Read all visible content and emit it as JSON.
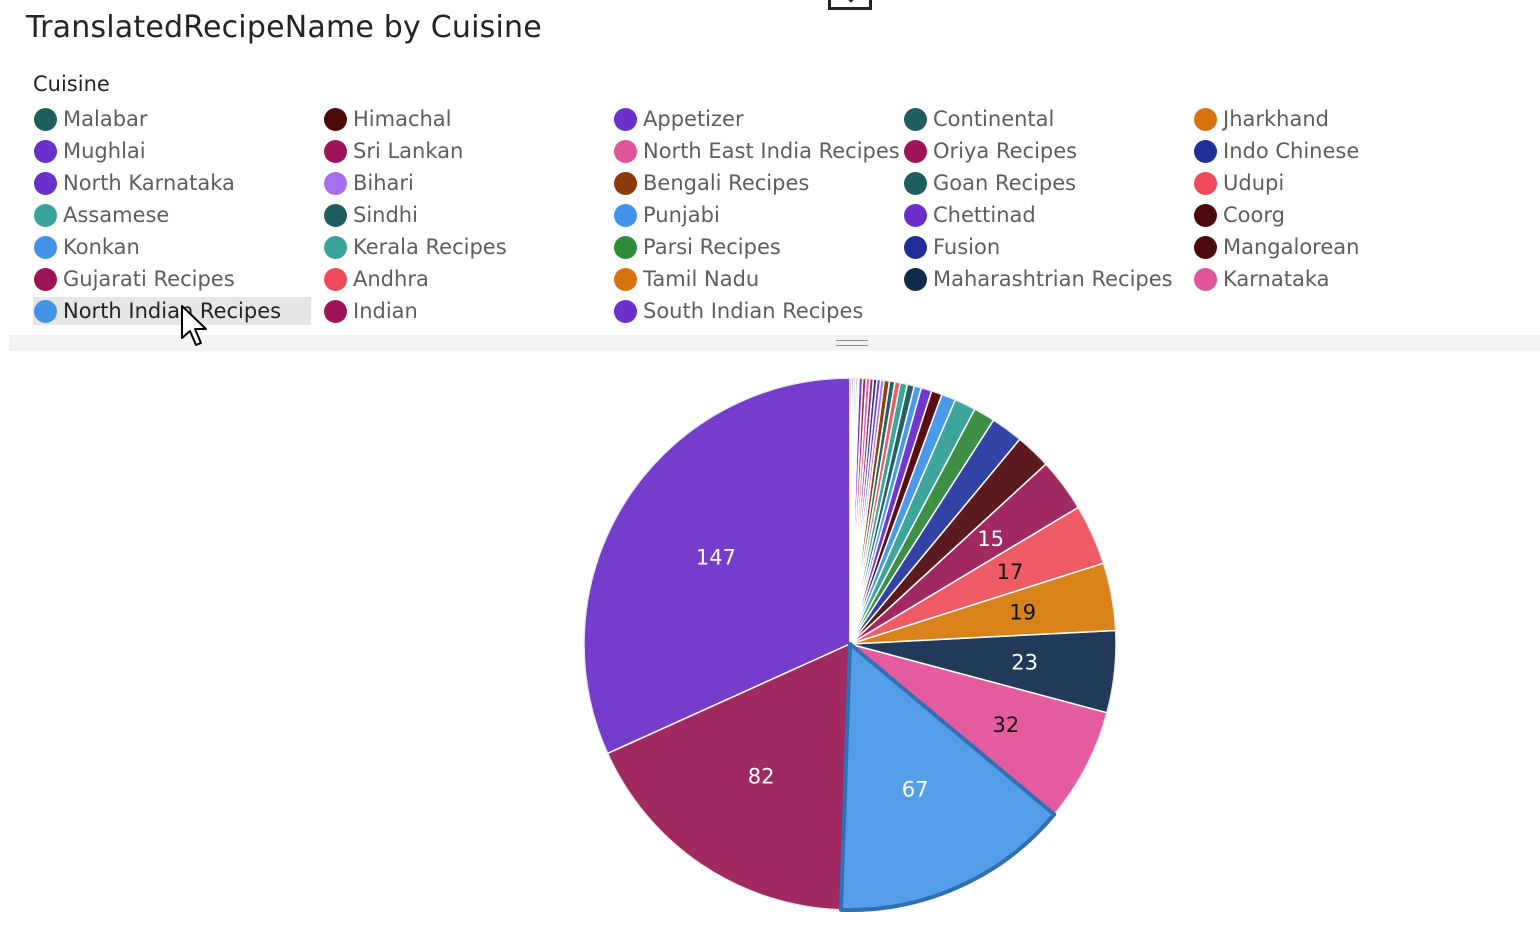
{
  "title": "TranslatedRecipeName by Cuisine",
  "legend": {
    "title": "Cuisine",
    "items": [
      {
        "label": "Malabar",
        "color": "#1F5E5E"
      },
      {
        "label": "Himachal",
        "color": "#4A0B0B"
      },
      {
        "label": "Appetizer",
        "color": "#6B2FCC"
      },
      {
        "label": "Continental",
        "color": "#1F5E5E"
      },
      {
        "label": "Jharkhand",
        "color": "#D9730D"
      },
      {
        "label": "Mughlai",
        "color": "#6B2FCC"
      },
      {
        "label": "Sri Lankan",
        "color": "#9E1458"
      },
      {
        "label": "North East India Recipes",
        "color": "#E2559B"
      },
      {
        "label": "Oriya Recipes",
        "color": "#9E1458"
      },
      {
        "label": "Indo Chinese",
        "color": "#1F2E99"
      },
      {
        "label": "North Karnataka",
        "color": "#6B2FCC"
      },
      {
        "label": "Bihari",
        "color": "#A66FF0"
      },
      {
        "label": "Bengali Recipes",
        "color": "#8A3A0B"
      },
      {
        "label": "Goan Recipes",
        "color": "#1F5E5E"
      },
      {
        "label": "Udupi",
        "color": "#EF4A5A"
      },
      {
        "label": "Assamese",
        "color": "#3AA39A"
      },
      {
        "label": "Sindhi",
        "color": "#1F5E5E"
      },
      {
        "label": "Punjabi",
        "color": "#4394E8"
      },
      {
        "label": "Chettinad",
        "color": "#6B2FCC"
      },
      {
        "label": "Coorg",
        "color": "#4A0B0B"
      },
      {
        "label": "Konkan",
        "color": "#4394E8"
      },
      {
        "label": "Kerala Recipes",
        "color": "#3AA39A"
      },
      {
        "label": "Parsi Recipes",
        "color": "#2E8B3A"
      },
      {
        "label": "Fusion",
        "color": "#1F2E99"
      },
      {
        "label": "Mangalorean",
        "color": "#4A0B0B"
      },
      {
        "label": "Gujarati Recipes",
        "color": "#9E1458"
      },
      {
        "label": "Andhra",
        "color": "#EF4A5A"
      },
      {
        "label": "Tamil Nadu",
        "color": "#D9730D"
      },
      {
        "label": "Maharashtrian Recipes",
        "color": "#112A4A"
      },
      {
        "label": "Karnataka",
        "color": "#E2559B"
      },
      {
        "label": "North Indian Recipes",
        "color": "#4394E8"
      },
      {
        "label": "Indian",
        "color": "#9E1458"
      },
      {
        "label": "South Indian Recipes",
        "color": "#6B2FCC"
      }
    ]
  },
  "chart_data": {
    "type": "pie",
    "title": "TranslatedRecipeName by Cuisine",
    "legend_title": "Cuisine",
    "legend_position": "top",
    "highlighted": "North Indian Recipes",
    "slices": [
      {
        "category": "South Indian Recipes",
        "value": 147,
        "color": "#763CCB",
        "label": "147"
      },
      {
        "category": "Indian",
        "value": 82,
        "color": "#A02962",
        "label": "82"
      },
      {
        "category": "North Indian Recipes",
        "value": 67,
        "color": "#549DE9",
        "label": "67"
      },
      {
        "category": "Karnataka",
        "value": 32,
        "color": "#E45C9F",
        "label": "32"
      },
      {
        "category": "Maharashtrian Recipes",
        "value": 23,
        "color": "#223A5A",
        "label": "23"
      },
      {
        "category": "Tamil Nadu",
        "value": 19,
        "color": "#D9821A",
        "label": "19"
      },
      {
        "category": "Andhra",
        "value": 17,
        "color": "#F05C66",
        "label": "17"
      },
      {
        "category": "Gujarati Recipes",
        "value": 15,
        "color": "#A02962",
        "label": "15"
      },
      {
        "category": "Mangalorean",
        "value": 10,
        "color": "#5A1A1F"
      },
      {
        "category": "Fusion",
        "value": 9,
        "color": "#3342A5"
      },
      {
        "category": "Parsi Recipes",
        "value": 6,
        "color": "#3D8F45"
      },
      {
        "category": "Kerala Recipes",
        "value": 6,
        "color": "#3EA59C"
      },
      {
        "category": "Konkan",
        "value": 4,
        "color": "#4A9AEB"
      },
      {
        "category": "Coorg",
        "value": 3,
        "color": "#5A0E12"
      },
      {
        "category": "Chettinad",
        "value": 3,
        "color": "#7138D0"
      },
      {
        "category": "Punjabi",
        "value": 2,
        "color": "#4A9AEB"
      },
      {
        "category": "Sindhi",
        "value": 2,
        "color": "#226464"
      },
      {
        "category": "Assamese",
        "value": 2,
        "color": "#3EA59C"
      },
      {
        "category": "Udupi",
        "value": 1.5,
        "color": "#F05C66"
      },
      {
        "category": "Goan Recipes",
        "value": 1.5,
        "color": "#226464"
      },
      {
        "category": "Bengali Recipes",
        "value": 1.5,
        "color": "#8E4012"
      },
      {
        "category": "Bihari",
        "value": 1,
        "color": "#A878F0"
      },
      {
        "category": "North Karnataka",
        "value": 1,
        "color": "#7138D0"
      },
      {
        "category": "Indo Chinese",
        "value": 1,
        "color": "#2A38A0"
      },
      {
        "category": "Oriya Recipes",
        "value": 1,
        "color": "#A02962"
      },
      {
        "category": "North East India Recipes",
        "value": 1,
        "color": "#E45C9F"
      },
      {
        "category": "Sri Lankan",
        "value": 1,
        "color": "#A02962"
      },
      {
        "category": "Mughlai",
        "value": 1,
        "color": "#7138D0"
      },
      {
        "category": "Jharkhand",
        "value": 0.5,
        "color": "#D9821A"
      },
      {
        "category": "Continental",
        "value": 0.5,
        "color": "#226464"
      },
      {
        "category": "Appetizer",
        "value": 0.5,
        "color": "#7138D0"
      },
      {
        "category": "Himachal",
        "value": 0.5,
        "color": "#5A0E12"
      },
      {
        "category": "Malabar",
        "value": 0.5,
        "color": "#226464"
      }
    ]
  }
}
